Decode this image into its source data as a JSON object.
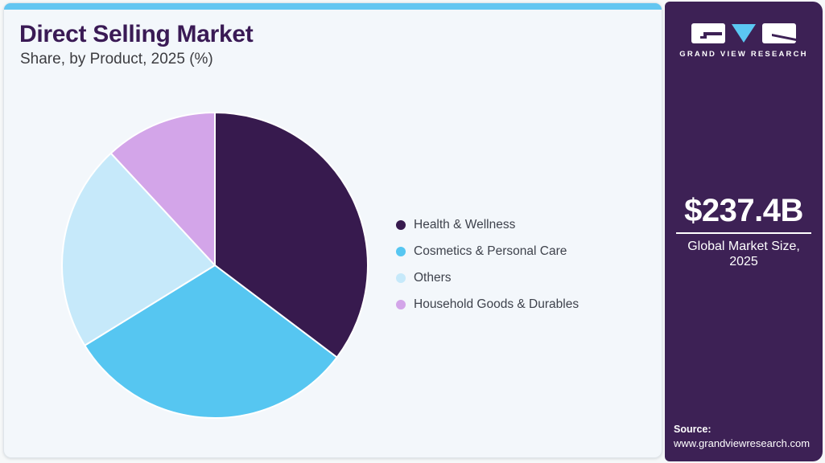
{
  "header": {
    "title": "Direct Selling Market",
    "subtitle": "Share, by Product, 2025 (%)"
  },
  "chart_data": {
    "type": "pie",
    "title": "Direct Selling Market Share, by Product, 2025 (%)",
    "categories": [
      "Health & Wellness",
      "Cosmetics & Personal Care",
      "Others",
      "Household Goods & Durables"
    ],
    "values": [
      35.3,
      30.9,
      21.9,
      11.9
    ],
    "colors": [
      "#371a4e",
      "#56c6f1",
      "#c6e9fa",
      "#d3a5e9"
    ],
    "start_angle_deg": 0,
    "direction": "clockwise",
    "legend_position": "right",
    "slice_border_color": "#ffffff"
  },
  "sidebar": {
    "logo": {
      "brand": "GRAND VIEW RESEARCH",
      "icons": [
        "g-block-icon",
        "v-triangle-icon",
        "r-block-icon"
      ]
    },
    "market_size_value": "$237.4B",
    "market_size_label_line1": "Global Market Size,",
    "market_size_label_line2": "2025",
    "source_label": "Source:",
    "source_url": "www.grandviewresearch.com"
  },
  "theme": {
    "accent_blue": "#63c6f1",
    "sidebar_bg": "#3d2155",
    "title_purple": "#3a1a55",
    "card_bg": "#f3f7fb",
    "legend_text": "#3e424c",
    "logo_triangle_blue": "#5bc8f3",
    "white": "#ffffff"
  }
}
